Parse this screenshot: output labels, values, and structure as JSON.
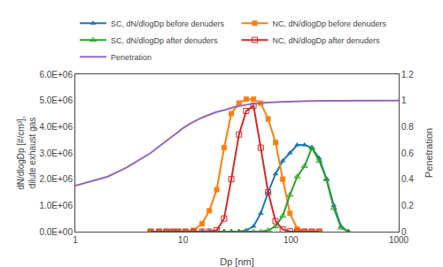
{
  "chart_data": {
    "type": "line",
    "xlabel": "Dp [nm]",
    "ylabel": "dN/dlogDp [#/cm³],\ndilute exhaust gas",
    "y2label": "Penetration",
    "log": "x",
    "grid": false,
    "legend": "top",
    "xlim": [
      1,
      1000
    ],
    "xticks": [
      1,
      10,
      100,
      1000
    ],
    "ylim": [
      0,
      6000000
    ],
    "yticks": [
      {
        "value": 0,
        "label": "0.0E+00"
      },
      {
        "value": 1000000,
        "label": "1.0E+06"
      },
      {
        "value": 2000000,
        "label": "2.0E+06"
      },
      {
        "value": 3000000,
        "label": "3.0E+06"
      },
      {
        "value": 4000000,
        "label": "4.0E+06"
      },
      {
        "value": 5000000,
        "label": "5.0E+06"
      },
      {
        "value": 6000000,
        "label": "6.0E+06"
      }
    ],
    "y2lim": [
      0,
      1.2
    ],
    "y2ticks": [
      0,
      0.2,
      0.4,
      0.6,
      0.8,
      1,
      1.2
    ],
    "series": [
      {
        "name": "SC, dN/dlogDp before denuders",
        "marker": "triangle-up",
        "x": [
          5.0,
          6.0,
          7.0,
          8.0,
          9.0,
          10.5,
          12.5,
          15.0,
          17.5,
          20.5,
          24.0,
          28.0,
          33.0,
          38.5,
          45.0,
          52.5,
          61.5,
          72.0,
          84.0,
          98.0,
          114.5,
          134.0,
          156.5,
          183.0,
          214.0,
          250.0,
          292.0,
          341.0
        ],
        "values": [
          0,
          0,
          0,
          0,
          0,
          0,
          0,
          0,
          0,
          0,
          0,
          0,
          0,
          50000,
          200000,
          700000,
          1500000,
          2200000,
          2700000,
          3000000,
          3300000,
          3300000,
          3200000,
          2800000,
          2000000,
          1000000,
          200000,
          0
        ]
      },
      {
        "name": "NC, dN/dlogDp before denuders",
        "marker": "square",
        "x": [
          5.0,
          6.0,
          7.0,
          8.0,
          9.0,
          10.5,
          12.5,
          15.0,
          17.5,
          20.5,
          24.0,
          28.0,
          33.0,
          38.5,
          45.0,
          52.5,
          61.5,
          72.0,
          84.0,
          98.0,
          114.5,
          134.0,
          156.5,
          183.0
        ],
        "values": [
          0,
          0,
          0,
          0,
          0,
          0,
          50000,
          300000,
          800000,
          1600000,
          3200000,
          4500000,
          4900000,
          5050000,
          5050000,
          4900000,
          4300000,
          3400000,
          2000000,
          700000,
          100000,
          10000,
          0,
          0
        ]
      },
      {
        "name": "SC, dN/dlogDp after denuders",
        "marker": "triangle-up-open",
        "x": [
          5.0,
          6.0,
          7.0,
          8.0,
          9.0,
          10.5,
          12.5,
          15.0,
          17.5,
          20.5,
          24.0,
          28.0,
          33.0,
          38.5,
          45.0,
          52.5,
          61.5,
          72.0,
          84.0,
          98.0,
          114.5,
          134.0,
          156.5,
          183.0,
          214.0,
          250.0,
          292.0,
          341.0
        ],
        "values": [
          0,
          0,
          0,
          0,
          0,
          0,
          0,
          0,
          0,
          0,
          0,
          0,
          0,
          0,
          0,
          0,
          50000,
          200000,
          600000,
          1400000,
          2100000,
          2500000,
          3200000,
          2700000,
          2000000,
          900000,
          150000,
          0
        ]
      },
      {
        "name": "NC, dN/dlogDp after denuders",
        "marker": "square-open",
        "x": [
          5.0,
          6.0,
          7.0,
          8.0,
          9.0,
          10.5,
          12.5,
          15.0,
          17.5,
          20.5,
          24.0,
          28.0,
          33.0,
          38.5,
          45.0,
          52.5,
          61.5,
          72.0,
          84.0,
          98.0,
          114.5,
          134.0,
          156.5,
          183.0
        ],
        "values": [
          0,
          0,
          0,
          0,
          0,
          0,
          0,
          0,
          0,
          50000,
          500000,
          2000000,
          3700000,
          4600000,
          4800000,
          3200000,
          1500000,
          400000,
          80000,
          10000,
          0,
          0,
          0,
          0
        ]
      },
      {
        "name": "Penetration",
        "axis": "y2",
        "x": [
          1.0,
          2.0,
          3.0,
          4.0,
          5.0,
          6.0,
          7.0,
          8.0,
          9.0,
          10.0,
          12.0,
          15.0,
          20.0,
          25.0,
          30.0,
          40.0,
          50.0,
          60.0,
          80.0,
          100.0,
          150.0,
          200.0,
          300.0,
          500.0,
          700.0,
          1000.0
        ],
        "values": [
          0.35,
          0.42,
          0.49,
          0.55,
          0.6,
          0.65,
          0.69,
          0.73,
          0.76,
          0.79,
          0.83,
          0.87,
          0.91,
          0.93,
          0.95,
          0.97,
          0.98,
          0.985,
          0.99,
          0.993,
          0.996,
          0.997,
          0.998,
          0.999,
          0.999,
          1.0
        ]
      }
    ]
  }
}
